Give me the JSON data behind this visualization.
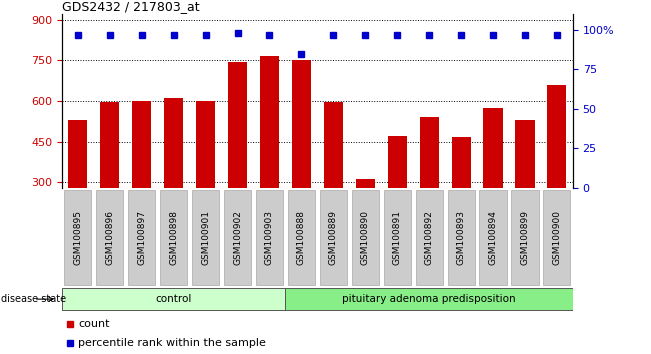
{
  "title": "GDS2432 / 217803_at",
  "samples": [
    "GSM100895",
    "GSM100896",
    "GSM100897",
    "GSM100898",
    "GSM100901",
    "GSM100902",
    "GSM100903",
    "GSM100888",
    "GSM100889",
    "GSM100890",
    "GSM100891",
    "GSM100892",
    "GSM100893",
    "GSM100894",
    "GSM100899",
    "GSM100900"
  ],
  "counts": [
    530,
    595,
    600,
    610,
    600,
    745,
    765,
    750,
    595,
    310,
    470,
    540,
    465,
    575,
    530,
    660
  ],
  "percentile_ranks": [
    97,
    97,
    97,
    97,
    97,
    98,
    97,
    85,
    97,
    97,
    97,
    97,
    97,
    97,
    97,
    97
  ],
  "groups": [
    "control",
    "control",
    "control",
    "control",
    "control",
    "control",
    "control",
    "pituitary adenoma predisposition",
    "pituitary adenoma predisposition",
    "pituitary adenoma predisposition",
    "pituitary adenoma predisposition",
    "pituitary adenoma predisposition",
    "pituitary adenoma predisposition",
    "pituitary adenoma predisposition",
    "pituitary adenoma predisposition",
    "pituitary adenoma predisposition"
  ],
  "bar_color": "#cc0000",
  "dot_color": "#0000cc",
  "ylim_left": [
    280,
    920
  ],
  "yticks_left": [
    300,
    450,
    600,
    750,
    900
  ],
  "ylim_right": [
    0,
    110
  ],
  "yticks_right": [
    0,
    25,
    50,
    75,
    100
  ],
  "right_ytick_labels": [
    "0",
    "25",
    "50",
    "75",
    "100%"
  ],
  "grid_color": "black",
  "bg_color": "#ffffff",
  "legend_count_label": "count",
  "legend_pct_label": "percentile rank within the sample",
  "disease_state_label": "disease state",
  "control_color": "#ccffcc",
  "adenoma_color": "#88ee88",
  "label_bg_color": "#cccccc"
}
